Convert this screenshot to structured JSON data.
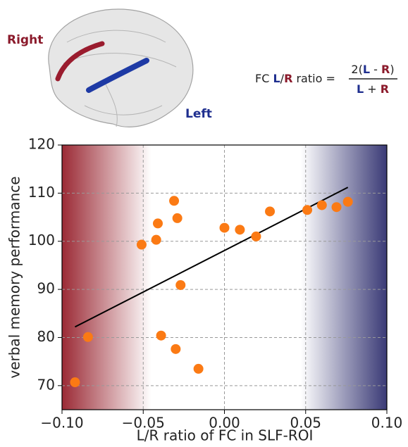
{
  "chart_data": {
    "type": "scatter",
    "xlabel": "L/R ratio of FC in SLF-ROI",
    "ylabel": "verbal memory performance",
    "xlim": [
      -0.1,
      0.1
    ],
    "ylim": [
      65,
      120
    ],
    "xticks": [
      {
        "value": -0.1,
        "label": "−0.10"
      },
      {
        "value": -0.05,
        "label": "−0.05"
      },
      {
        "value": 0.0,
        "label": "0.00"
      },
      {
        "value": 0.05,
        "label": "0.05"
      },
      {
        "value": 0.1,
        "label": "0.10"
      }
    ],
    "yticks": [
      70,
      80,
      90,
      100,
      110,
      120
    ],
    "grid": true,
    "shading": [
      {
        "from": -0.1,
        "to": -0.045,
        "color": "#9b2a35"
      },
      {
        "from": 0.047,
        "to": 0.1,
        "color": "#3a3a76"
      }
    ],
    "series": [
      {
        "color": "#fb7a14",
        "x": [
          -0.092,
          -0.084,
          -0.051,
          -0.042,
          -0.041,
          -0.039,
          -0.031,
          -0.029,
          -0.027,
          -0.03,
          -0.016,
          0.0,
          0.0095,
          0.0195,
          0.028,
          0.051,
          0.06,
          0.069,
          0.076
        ],
        "y": [
          70.7,
          80.1,
          99.3,
          100.3,
          103.7,
          80.4,
          108.4,
          104.8,
          90.9,
          77.6,
          73.5,
          102.8,
          102.4,
          101.0,
          106.2,
          106.5,
          107.5,
          107.1,
          108.2
        ]
      }
    ],
    "fit": {
      "color": "#000000",
      "x": [
        -0.092,
        0.076
      ],
      "y": [
        82.2,
        111.2
      ]
    },
    "annotations": {
      "right_label": "Right",
      "left_label": "Left",
      "formula": {
        "left": [
          "FC ",
          "L",
          "/",
          "R",
          " ratio ="
        ],
        "numerator": [
          "2(",
          "L",
          " - ",
          "R",
          ")"
        ],
        "denominator": [
          "L",
          " + ",
          "R"
        ]
      }
    }
  }
}
